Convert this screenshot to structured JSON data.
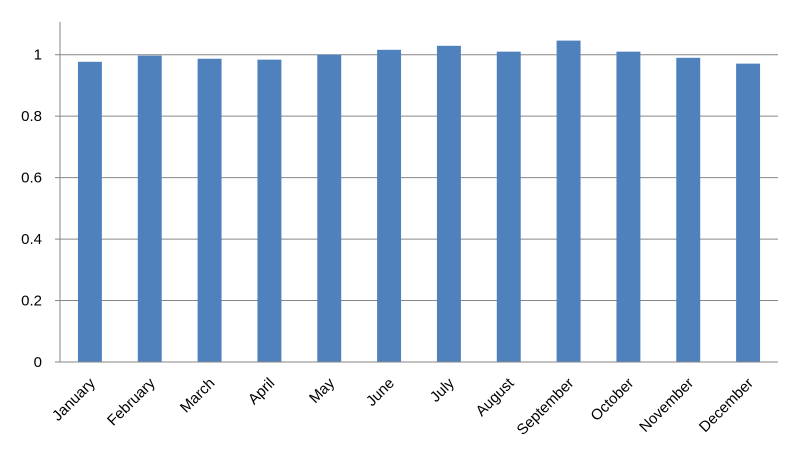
{
  "chart_data": {
    "type": "bar",
    "categories": [
      "January",
      "February",
      "March",
      "April",
      "May",
      "June",
      "July",
      "August",
      "September",
      "October",
      "November",
      "December"
    ],
    "values": [
      0.977,
      0.997,
      0.987,
      0.984,
      1.0,
      1.016,
      1.029,
      1.01,
      1.046,
      1.01,
      0.99,
      0.971
    ],
    "color": "#4f81bd",
    "ylim": [
      0,
      1.1
    ],
    "yticks": [
      0,
      0.2,
      0.4,
      0.6,
      0.8,
      1
    ],
    "grid": true
  }
}
